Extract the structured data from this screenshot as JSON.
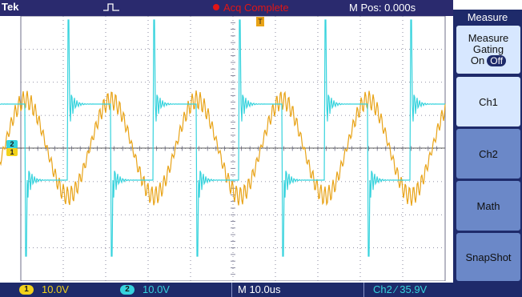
{
  "header": {
    "brand": "Tek",
    "trigger_icon": "pulse-trigger-icon",
    "acquisition_status": "Acq Complete",
    "horizontal_position": "M Pos: 0.000s"
  },
  "menu": {
    "title": "Measure",
    "gating": {
      "line1": "Measure",
      "line2": "Gating",
      "on_label": "On",
      "off_label": "Off"
    },
    "buttons": [
      "Ch1",
      "Ch2",
      "Math",
      "SnapShot"
    ]
  },
  "bottom": {
    "ch1_badge": "1",
    "ch1_scale": "10.0V",
    "ch2_badge": "2",
    "ch2_scale": "10.0V",
    "time_scale": "M 10.0us",
    "trigger_readout": "Ch2 ⁄ 35.9V"
  },
  "markers": {
    "ch1": "1",
    "ch2": "2",
    "trigger": "T"
  },
  "colors": {
    "ch1": "#f2d21a",
    "ch2": "#36d3dd",
    "bar": "#1e2a6a",
    "status_red": "#e11515",
    "graticule": "#6f6f8a"
  }
}
